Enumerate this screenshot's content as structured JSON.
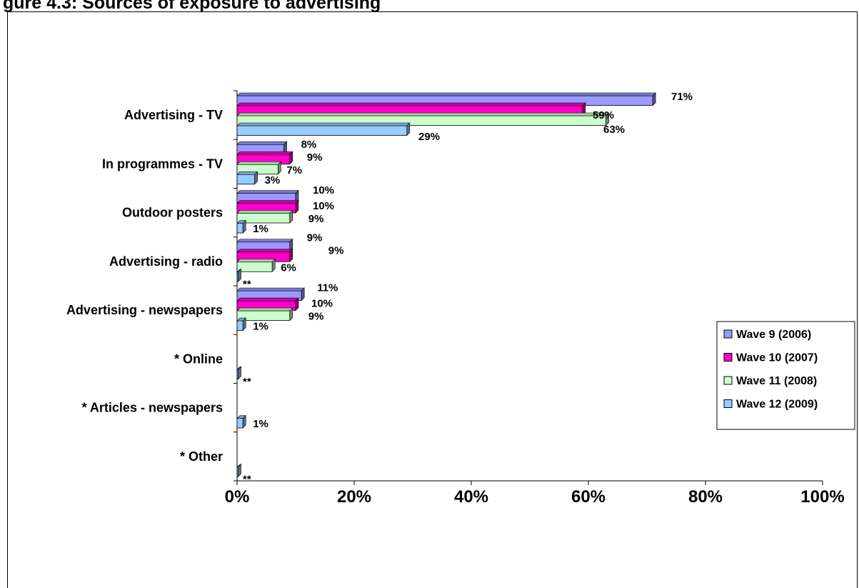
{
  "page": {
    "title": "gure 4.3: Sources of exposure to advertising"
  },
  "chart_data": {
    "type": "bar",
    "orientation": "horizontal",
    "categories": [
      "Advertising - TV",
      "In programmes - TV",
      "Outdoor posters",
      "Advertising - radio",
      "Advertising - newspapers",
      "* Online",
      "* Articles - newspapers",
      "* Other"
    ],
    "series": [
      {
        "name": "Wave 9 (2006)",
        "color": "#9999FF",
        "values": [
          71,
          8,
          10,
          9,
          11,
          null,
          null,
          null
        ],
        "labels": [
          "71%",
          "8%",
          "10%",
          "9%",
          "11%",
          "",
          "",
          ""
        ]
      },
      {
        "name": "Wave 10 (2007)",
        "color": "#FF00CC",
        "values": [
          59,
          9,
          10,
          9,
          10,
          null,
          null,
          null
        ],
        "labels": [
          "59%",
          "9%",
          "10%",
          "9%",
          "10%",
          "",
          "",
          ""
        ]
      },
      {
        "name": "Wave 11 (2008)",
        "color": "#CCFFCC",
        "values": [
          63,
          7,
          9,
          6,
          9,
          null,
          null,
          null
        ],
        "labels": [
          "63%",
          "7%",
          "9%",
          "6%",
          "9%",
          "",
          "",
          ""
        ]
      },
      {
        "name": "Wave 12 (2009)",
        "color": "#99CCFF",
        "values": [
          29,
          3,
          1,
          0,
          1,
          0,
          1,
          0
        ],
        "labels": [
          "29%",
          "3%",
          "1%",
          "**",
          "1%",
          "**",
          "1%",
          "**"
        ]
      }
    ],
    "xlim": [
      0,
      100
    ],
    "xticks": [
      "0%",
      "20%",
      "40%",
      "60%",
      "80%",
      "100%"
    ],
    "legend_position": "right",
    "grid": false,
    "style": "3d-bars"
  }
}
